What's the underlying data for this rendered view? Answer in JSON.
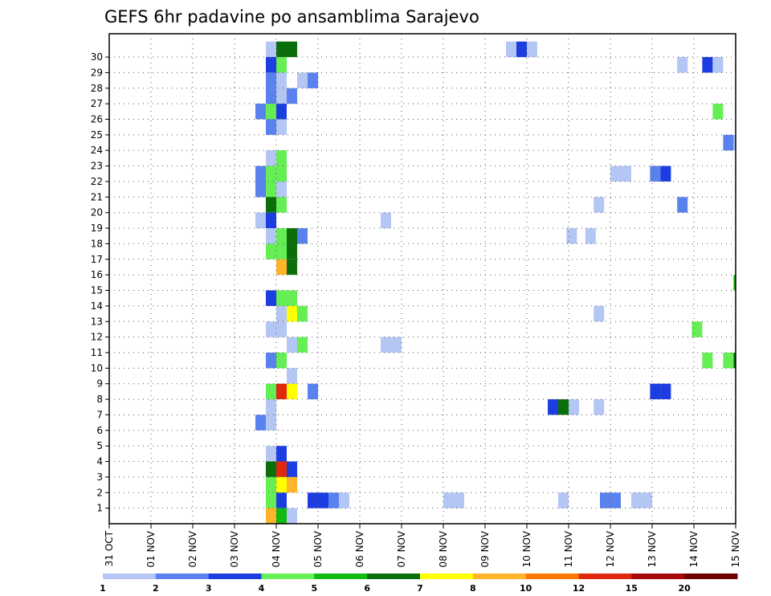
{
  "chart_data": {
    "type": "heatmap",
    "title": "GEFS 6hr padavine po ansamblima Sarajevo",
    "xlabel": "",
    "ylabel": "",
    "x_tick_labels": [
      "31 OCT",
      "01 NOV",
      "02 NOV",
      "03 NOV",
      "04 NOV",
      "05 NOV",
      "06 NOV",
      "07 NOV",
      "08 NOV",
      "09 NOV",
      "10 NOV",
      "11 NOV",
      "12 NOV",
      "13 NOV",
      "14 NOV",
      "15 NOV"
    ],
    "y_tick_labels": [
      "1",
      "2",
      "3",
      "4",
      "5",
      "6",
      "7",
      "8",
      "9",
      "10",
      "11",
      "12",
      "13",
      "14",
      "15",
      "16",
      "17",
      "18",
      "19",
      "20",
      "21",
      "22",
      "23",
      "24",
      "25",
      "26",
      "27",
      "28",
      "29",
      "30"
    ],
    "y_range": [
      0,
      30
    ],
    "grid": true,
    "colorbar": {
      "labels": [
        "1",
        "2",
        "3",
        "4",
        "5",
        "6",
        "7",
        "8",
        "10",
        "12",
        "15",
        "20"
      ],
      "colors": [
        "#b4c6f4",
        "#5a82ee",
        "#1c3ee0",
        "#66ee55",
        "#11bb11",
        "#0b6e0b",
        "#ffff00",
        "#ffb42a",
        "#ff7800",
        "#e0280e",
        "#a50a0a",
        "#6e0000"
      ]
    },
    "cells_note": "Each cell: [day offset from 31 OCT 00UTC (0.25 = 6 h), ensemble member (0 = control), colour class index into colorbar.colors]",
    "cells": [
      [
        3.75,
        30,
        0
      ],
      [
        3.75,
        29,
        2
      ],
      [
        3.75,
        28,
        1
      ],
      [
        3.75,
        27,
        1
      ],
      [
        3.75,
        26,
        3
      ],
      [
        3.75,
        25,
        1
      ],
      [
        3.75,
        23,
        0
      ],
      [
        3.75,
        22,
        3
      ],
      [
        3.75,
        21,
        3
      ],
      [
        3.75,
        20,
        5
      ],
      [
        3.75,
        19,
        2
      ],
      [
        3.75,
        18,
        0
      ],
      [
        3.75,
        17,
        3
      ],
      [
        3.75,
        14,
        2
      ],
      [
        3.75,
        12,
        0
      ],
      [
        3.75,
        10,
        1
      ],
      [
        3.75,
        8,
        3
      ],
      [
        3.75,
        7,
        0
      ],
      [
        3.75,
        6,
        0
      ],
      [
        3.75,
        4,
        0
      ],
      [
        3.75,
        3,
        5
      ],
      [
        3.75,
        2,
        3
      ],
      [
        3.75,
        1,
        3
      ],
      [
        3.75,
        0,
        7
      ],
      [
        3.5,
        26,
        1
      ],
      [
        3.5,
        22,
        1
      ],
      [
        3.5,
        21,
        1
      ],
      [
        3.5,
        19,
        0
      ],
      [
        3.5,
        6,
        1
      ],
      [
        4.0,
        30,
        5
      ],
      [
        4.0,
        29,
        3
      ],
      [
        4.0,
        28,
        0
      ],
      [
        4.0,
        27,
        0
      ],
      [
        4.0,
        26,
        2
      ],
      [
        4.0,
        25,
        0
      ],
      [
        4.0,
        23,
        3
      ],
      [
        4.0,
        22,
        3
      ],
      [
        4.0,
        21,
        0
      ],
      [
        4.0,
        20,
        3
      ],
      [
        4.0,
        18,
        3
      ],
      [
        4.0,
        17,
        3
      ],
      [
        4.0,
        16,
        7
      ],
      [
        4.0,
        14,
        3
      ],
      [
        4.0,
        13,
        0
      ],
      [
        4.0,
        12,
        0
      ],
      [
        4.0,
        10,
        3
      ],
      [
        4.0,
        8,
        9
      ],
      [
        4.0,
        4,
        2
      ],
      [
        4.0,
        3,
        9
      ],
      [
        4.0,
        2,
        6
      ],
      [
        4.0,
        1,
        2
      ],
      [
        4.0,
        0,
        4
      ],
      [
        4.25,
        30,
        5
      ],
      [
        4.25,
        27,
        1
      ],
      [
        4.25,
        18,
        5
      ],
      [
        4.25,
        17,
        5
      ],
      [
        4.25,
        16,
        5
      ],
      [
        4.25,
        14,
        3
      ],
      [
        4.25,
        13,
        6
      ],
      [
        4.25,
        11,
        0
      ],
      [
        4.25,
        9,
        0
      ],
      [
        4.25,
        8,
        6
      ],
      [
        4.25,
        3,
        2
      ],
      [
        4.25,
        2,
        7
      ],
      [
        4.25,
        0,
        0
      ],
      [
        4.5,
        28,
        0
      ],
      [
        4.5,
        18,
        1
      ],
      [
        4.5,
        13,
        3
      ],
      [
        4.5,
        11,
        3
      ],
      [
        4.75,
        28,
        1
      ],
      [
        4.75,
        8,
        1
      ],
      [
        4.75,
        1,
        2
      ],
      [
        5.0,
        1,
        2
      ],
      [
        5.25,
        1,
        1
      ],
      [
        5.5,
        1,
        0
      ],
      [
        6.5,
        19,
        0
      ],
      [
        6.5,
        11,
        0
      ],
      [
        6.75,
        11,
        0
      ],
      [
        8.0,
        1,
        0
      ],
      [
        8.25,
        1,
        0
      ],
      [
        9.5,
        30,
        0
      ],
      [
        9.75,
        30,
        2
      ],
      [
        10.0,
        30,
        0
      ],
      [
        10.5,
        7,
        2
      ],
      [
        10.75,
        7,
        5
      ],
      [
        10.75,
        1,
        0
      ],
      [
        11.0,
        7,
        0
      ],
      [
        10.95,
        18,
        0
      ],
      [
        11.4,
        18,
        0
      ],
      [
        11.6,
        20,
        0
      ],
      [
        11.6,
        13,
        0
      ],
      [
        11.6,
        7,
        0
      ],
      [
        11.75,
        1,
        1
      ],
      [
        12.0,
        1,
        1
      ],
      [
        12.0,
        22,
        0
      ],
      [
        12.25,
        22,
        0
      ],
      [
        12.5,
        1,
        0
      ],
      [
        12.75,
        1,
        0
      ],
      [
        12.95,
        22,
        1
      ],
      [
        13.2,
        22,
        2
      ],
      [
        12.95,
        8,
        2
      ],
      [
        13.2,
        8,
        2
      ],
      [
        13.6,
        29,
        0
      ],
      [
        13.6,
        20,
        1
      ],
      [
        13.95,
        12,
        3
      ],
      [
        14.2,
        29,
        2
      ],
      [
        14.45,
        29,
        0
      ],
      [
        14.45,
        26,
        3
      ],
      [
        14.2,
        10,
        3
      ],
      [
        14.7,
        24,
        1
      ],
      [
        14.95,
        24,
        0
      ],
      [
        14.7,
        10,
        3
      ],
      [
        14.95,
        10,
        5
      ],
      [
        14.95,
        15,
        4
      ]
    ]
  }
}
